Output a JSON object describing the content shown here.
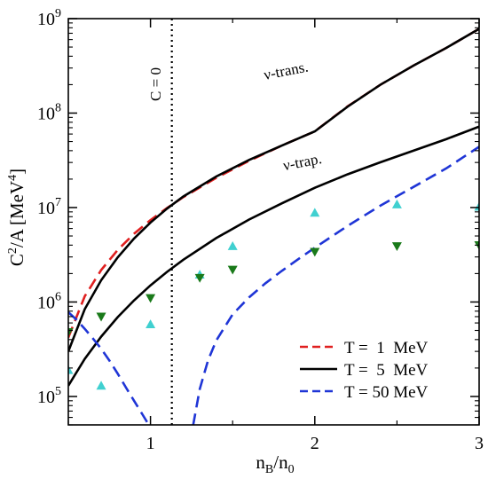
{
  "chart_data": {
    "type": "line",
    "xlabel": "n",
    "xlabel_sub_1": "B",
    "xlabel_mid": "/n",
    "xlabel_sub_2": "0",
    "ylabel_pre": "C",
    "ylabel_sup_1": "2",
    "ylabel_mid": "/A [MeV",
    "ylabel_sup_2": "4",
    "ylabel_post": "]",
    "xlim": [
      0.5,
      3.0
    ],
    "ylim": [
      50000,
      1000000000
    ],
    "yscale": "log",
    "x_ticks": [
      1,
      2,
      3
    ],
    "y_ticks": [
      {
        "value": 100000,
        "base": "10",
        "exp": "5"
      },
      {
        "value": 1000000,
        "base": "10",
        "exp": "6"
      },
      {
        "value": 10000000,
        "base": "10",
        "exp": "7"
      },
      {
        "value": 100000000,
        "base": "10",
        "exp": "8"
      },
      {
        "value": 1000000000,
        "base": "10",
        "exp": "9"
      }
    ],
    "vline": {
      "x": 1.13,
      "label": "C = 0"
    },
    "annotations": [
      {
        "text": "ν-trans.",
        "x": 1.83,
        "y": 250000000
      },
      {
        "text": "ν-trap.",
        "x": 1.93,
        "y": 27000000
      }
    ],
    "series": [
      {
        "name": "T =  1  MeV",
        "color": "#e02020",
        "dash": "dashed",
        "x": [
          0.5,
          0.6,
          0.7,
          0.8,
          0.9,
          1.0,
          1.1,
          1.2,
          1.4,
          1.6,
          1.8,
          2.0,
          2.2,
          2.4,
          2.6,
          2.8,
          3.0
        ],
        "y": [
          420000,
          1150000,
          2180000,
          3550000,
          5280000,
          7370000,
          9870000,
          12900000,
          20600000,
          31200000,
          45400000,
          64000000,
          118000000,
          200000000,
          318000000,
          490000000,
          780000000
        ]
      },
      {
        "name": "T =  5  MeV",
        "color": "#000000",
        "dash": "solid",
        "x": [
          0.5,
          0.6,
          0.7,
          0.8,
          0.9,
          1.0,
          1.1,
          1.2,
          1.4,
          1.6,
          1.8,
          2.0,
          2.2,
          2.4,
          2.6,
          2.8,
          3.0
        ],
        "y": [
          300000,
          840000,
          1700000,
          2960000,
          4700000,
          6930000,
          9720000,
          13100000,
          21300000,
          31900000,
          45300000,
          64000000,
          117000000,
          200000000,
          318000000,
          490000000,
          780000000
        ]
      },
      {
        "name": "T =  5  MeV",
        "legend": false,
        "color": "#000000",
        "dash": "solid",
        "x": [
          0.5,
          0.6,
          0.7,
          0.8,
          0.9,
          1.0,
          1.1,
          1.2,
          1.4,
          1.6,
          1.8,
          2.0,
          2.2,
          2.4,
          2.6,
          2.8,
          3.0
        ],
        "y": [
          130000,
          250000,
          430000,
          690000,
          1040000,
          1500000,
          2080000,
          2800000,
          4750000,
          7460000,
          11100000,
          16200000,
          22500000,
          30200000,
          40000000,
          53000000,
          72000000
        ]
      },
      {
        "name": "T = 50 MeV",
        "color": "#1f35d6",
        "dash": "dashed",
        "x": [
          0.5,
          0.55,
          0.6,
          0.65,
          0.7,
          0.75,
          0.8,
          0.85,
          0.9,
          0.95,
          0.99
        ],
        "y": [
          780000,
          650000,
          520000,
          410000,
          320000,
          240000,
          175000,
          125000,
          90000,
          65000,
          50000
        ]
      },
      {
        "name": "T = 50 MeV",
        "legend": false,
        "color": "#1f35d6",
        "dash": "dashed",
        "x": [
          1.26,
          1.3,
          1.35,
          1.4,
          1.5,
          1.6,
          1.7,
          1.8,
          1.9,
          2.0,
          2.2,
          2.4,
          2.6,
          2.8,
          3.0
        ],
        "y": [
          50000,
          120000,
          240000,
          390000,
          740000,
          1120000,
          1580000,
          2140000,
          2850000,
          3750000,
          6400000,
          10500000,
          16500000,
          26000000,
          44000000
        ]
      },
      {
        "name": "",
        "type": "scatter",
        "marker": "triangle-up",
        "color": "#40d0d0",
        "x": [
          0.5,
          0.7,
          1.0,
          1.3,
          1.5,
          2.0,
          2.5,
          3.0
        ],
        "y": [
          190000,
          130000,
          580000,
          1950000,
          3900000,
          8800000,
          10800000,
          10200000
        ]
      },
      {
        "name": "",
        "type": "scatter",
        "marker": "triangle-down",
        "color": "#1a7a1a",
        "x": [
          0.5,
          0.7,
          1.0,
          1.3,
          1.5,
          2.0,
          2.5,
          3.0
        ],
        "y": [
          480000,
          700000,
          1100000,
          1800000,
          2200000,
          3400000,
          3900000,
          4000000
        ]
      }
    ],
    "legend": {
      "position": "bottom-right"
    }
  }
}
